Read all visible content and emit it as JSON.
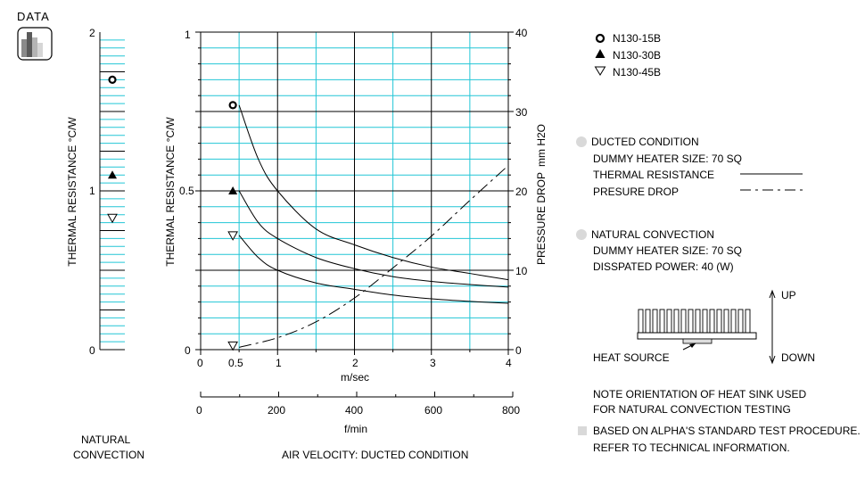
{
  "header": {
    "logo_label": "DATA"
  },
  "natural_panel": {
    "ylabel": "THERMAL  RESISTANCE   °C/W",
    "y_ticks": [
      "2",
      "1",
      "0"
    ],
    "caption_line1": "NATURAL",
    "caption_line2": "CONVECTION"
  },
  "main_chart": {
    "ylabel_left": "THERMAL  RESISTANCE   °C/W",
    "ylabel_right_1": "PRESSURE  DROP",
    "ylabel_right_2": "mm H2O",
    "left_ticks": [
      "1",
      "0.5",
      "0"
    ],
    "right_ticks": [
      "40",
      "30",
      "20",
      "10",
      "0"
    ],
    "x_ticks": [
      "0",
      "0.5",
      "1",
      "2",
      "3",
      "4"
    ],
    "x_label": "m/sec",
    "fmin_ticks": [
      "0",
      "200",
      "400",
      "600",
      "800"
    ],
    "fmin_label": "f/min",
    "caption": "AIR VELOCITY:   DUCTED CONDITION"
  },
  "legend": {
    "items": [
      {
        "label": "N130-15B",
        "marker": "circle"
      },
      {
        "label": "N130-30B",
        "marker": "triangle-filled"
      },
      {
        "label": "N130-45B",
        "marker": "triangle-open"
      }
    ]
  },
  "ducted": {
    "title": "DUCTED CONDITION",
    "heater": "DUMMY HEATER SIZE:  70 SQ",
    "thermal": "THERMAL RESISTANCE",
    "pressure": "PRESURE DROP"
  },
  "natural": {
    "title": "NATURAL CONVECTION",
    "heater": "DUMMY HEATER SIZE:  70 SQ",
    "power": "DISSPATED POWER:   40  (W)"
  },
  "diagram": {
    "up": "UP",
    "down": "DOWN",
    "heat_source": "HEAT SOURCE"
  },
  "notes": {
    "orientation_1": "NOTE ORIENTATION OF HEAT SINK USED",
    "orientation_2": "FOR NATURAL CONVECTION TESTING",
    "standard_1": "BASED ON ALPHA'S STANDARD TEST PROCEDURE.",
    "standard_2": "REFER TO TECHNICAL INFORMATION."
  },
  "chart_data": {
    "type": "line",
    "x_unit": "m/sec",
    "xlim": [
      0,
      4
    ],
    "ylim_thermal": [
      0,
      1
    ],
    "ylim_pressure": [
      0,
      40
    ],
    "grid": true,
    "series": [
      {
        "name": "N130-15B",
        "axis": "thermal",
        "x": [
          0.5,
          0.75,
          1,
          1.5,
          2,
          2.5,
          3,
          3.5,
          4
        ],
        "values": [
          0.77,
          0.6,
          0.5,
          0.38,
          0.33,
          0.29,
          0.26,
          0.24,
          0.22
        ]
      },
      {
        "name": "N130-30B",
        "axis": "thermal",
        "x": [
          0.5,
          0.75,
          1,
          1.5,
          2,
          2.5,
          3,
          3.5,
          4
        ],
        "values": [
          0.5,
          0.4,
          0.35,
          0.29,
          0.255,
          0.23,
          0.215,
          0.205,
          0.197
        ]
      },
      {
        "name": "N130-45B",
        "axis": "thermal",
        "x": [
          0.5,
          0.75,
          1,
          1.5,
          2,
          2.5,
          3,
          3.5,
          4
        ],
        "values": [
          0.36,
          0.29,
          0.25,
          0.21,
          0.19,
          0.172,
          0.16,
          0.152,
          0.146
        ]
      },
      {
        "name": "PRESURE DROP",
        "axis": "pressure",
        "x": [
          0.5,
          1,
          1.5,
          2,
          2.5,
          3,
          3.5,
          4
        ],
        "values": [
          0.3,
          1.5,
          3.5,
          6.5,
          10.3,
          14.3,
          18.8,
          23.2
        ]
      }
    ],
    "natural_convection": [
      {
        "name": "N130-15B",
        "value": 1.7
      },
      {
        "name": "N130-30B",
        "value": 1.1
      },
      {
        "name": "N130-45B",
        "value": 0.83
      }
    ]
  }
}
